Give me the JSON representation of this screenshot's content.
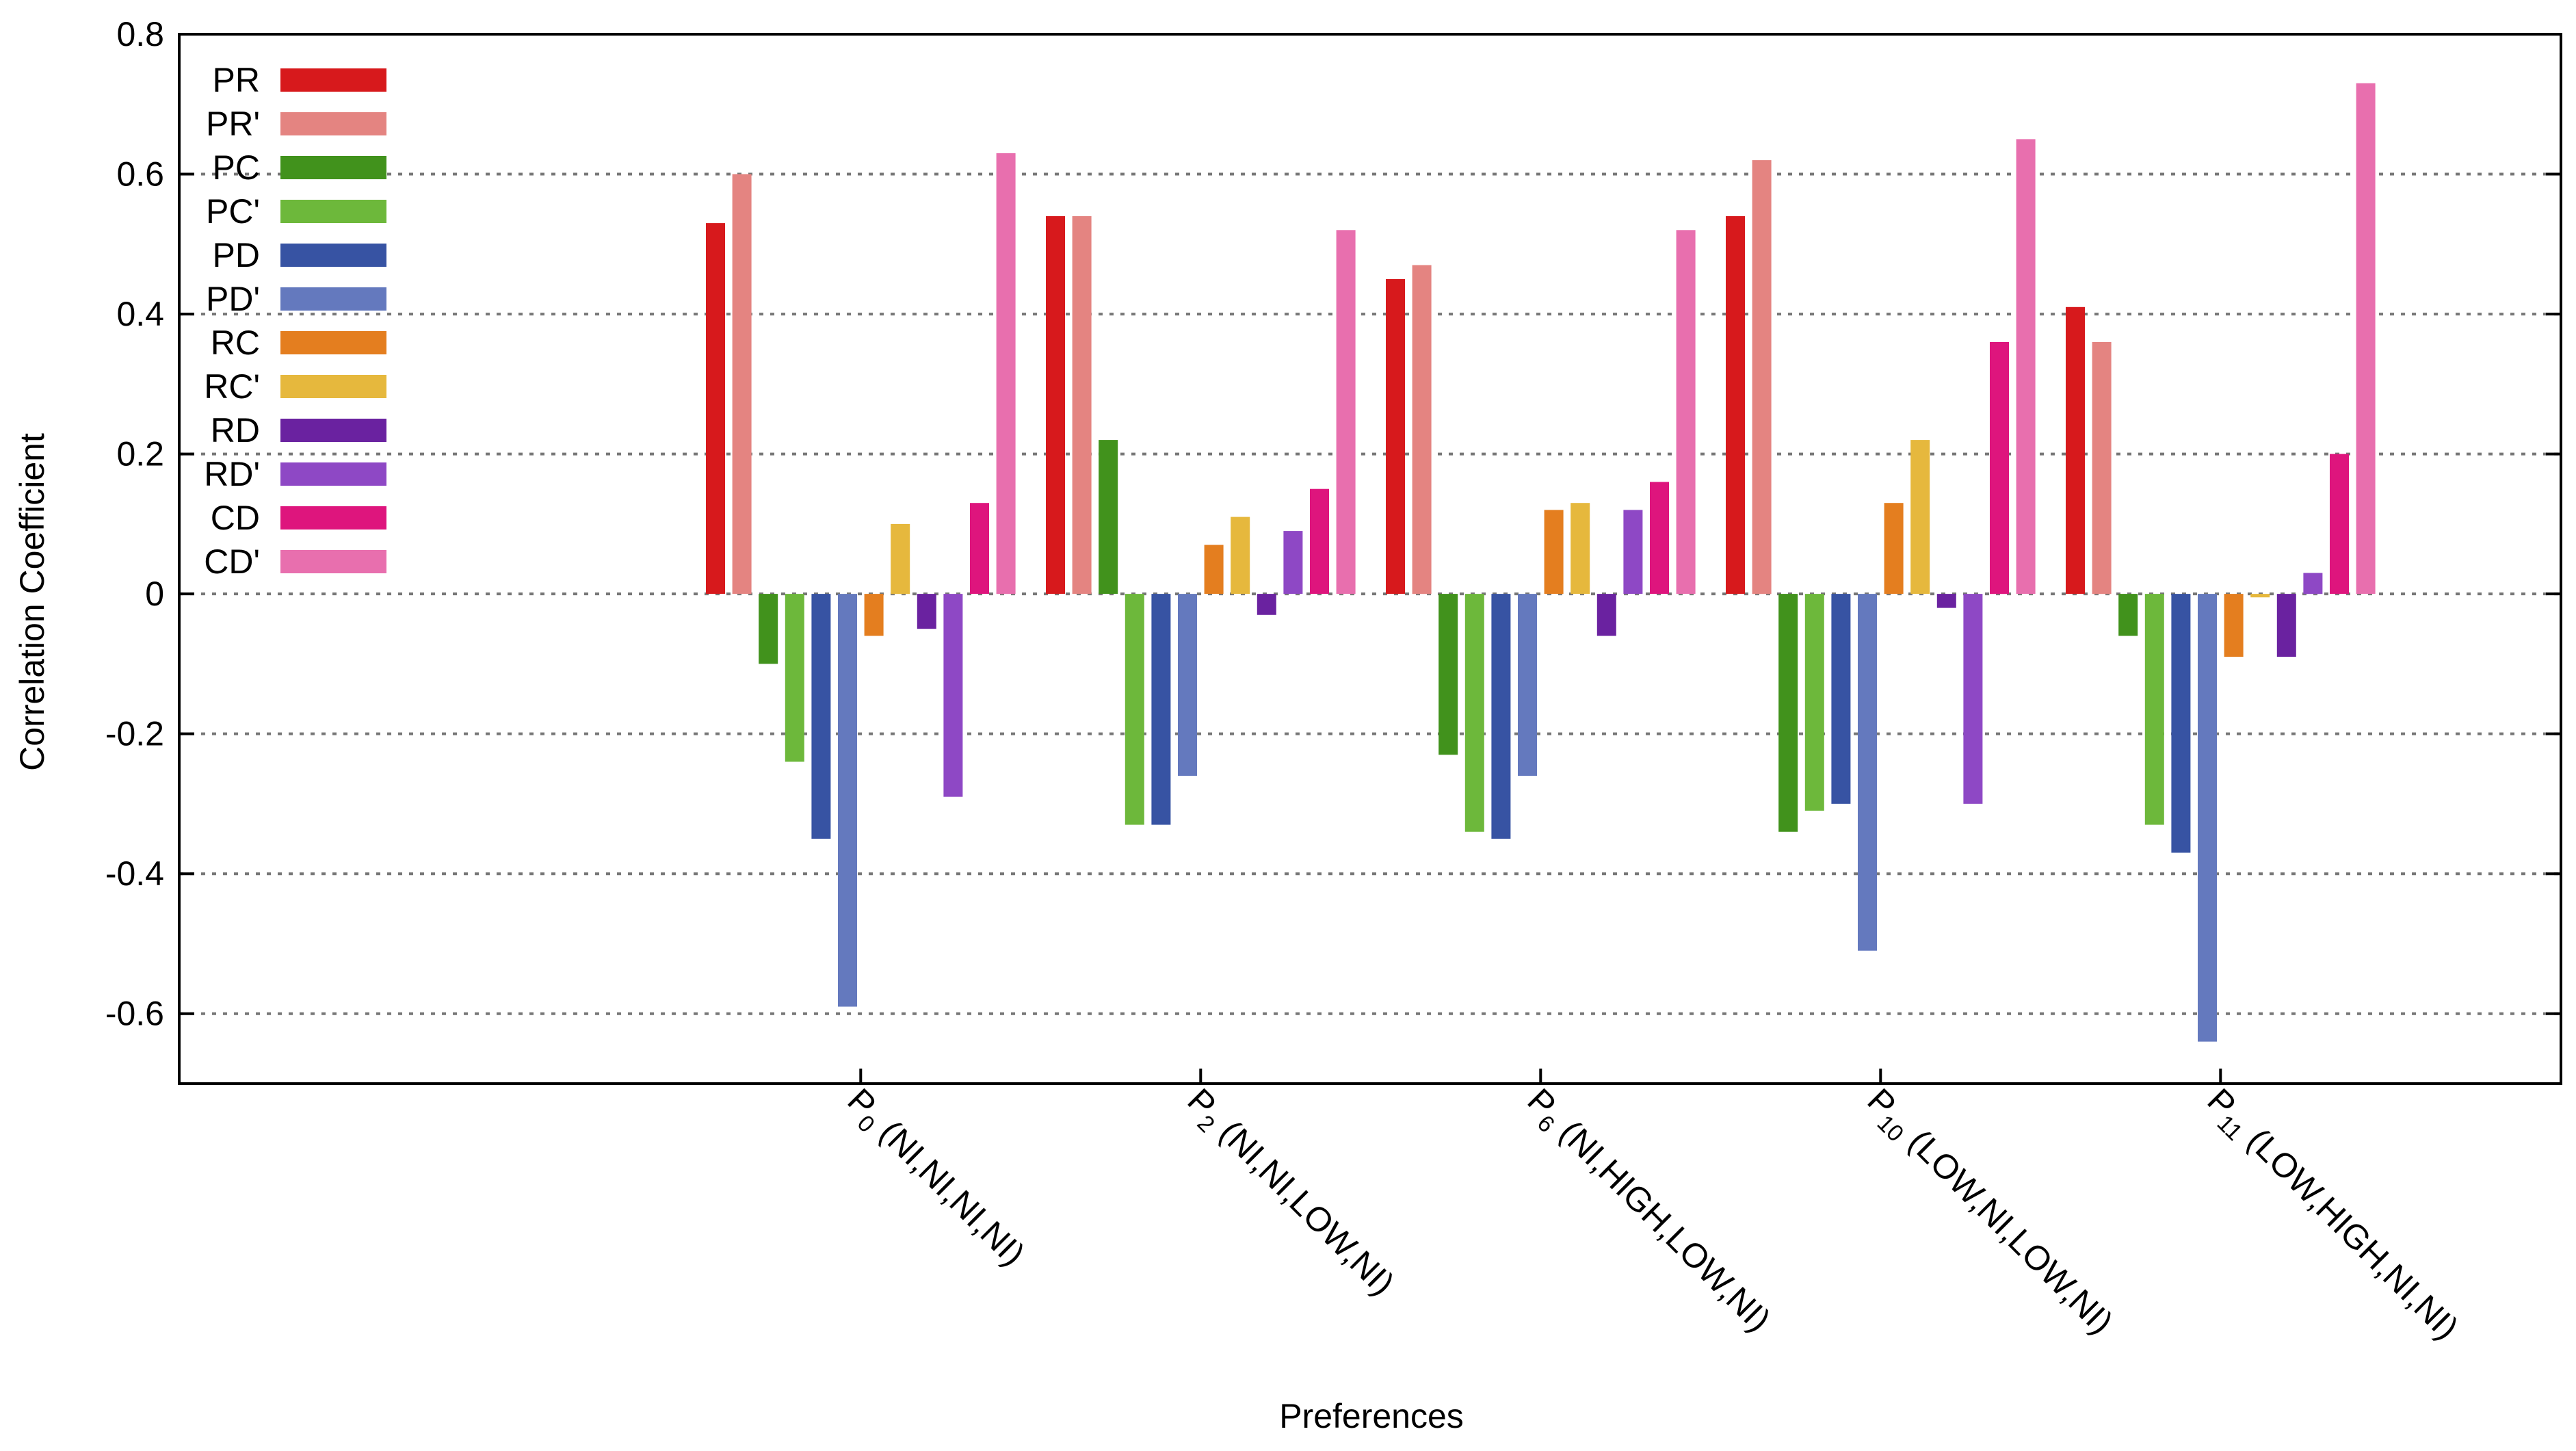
{
  "chart_data": {
    "type": "bar",
    "xlabel": "Preferences",
    "ylabel": "Correlation Coefficient",
    "ylim": [
      -0.7,
      0.8
    ],
    "yticks": [
      -0.6,
      -0.4,
      -0.2,
      0,
      0.2,
      0.4,
      0.6,
      0.8
    ],
    "ytick_labels": [
      "-0.6",
      "-0.4",
      "-0.2",
      "0",
      "0.2",
      "0.4",
      "0.6",
      "0.8"
    ],
    "grid": "horizontal dotted",
    "legend_position": "top-left",
    "categories": [
      {
        "sym": "P",
        "sub": "0",
        "rest": " (NI,NI,NI,NI)"
      },
      {
        "sym": "P",
        "sub": "2",
        "rest": " (NI,NI,LOW,NI)"
      },
      {
        "sym": "P",
        "sub": "6",
        "rest": " (NI,HIGH,LOW,NI)"
      },
      {
        "sym": "P",
        "sub": "10",
        "rest": " (LOW,NI,LOW,NI)"
      },
      {
        "sym": "P",
        "sub": "11",
        "rest": " (LOW,HIGH,NI,NI)"
      }
    ],
    "series": [
      {
        "name": "PR",
        "color": "#d7191c",
        "values": [
          0.53,
          0.54,
          0.45,
          0.54,
          0.41
        ]
      },
      {
        "name": "PR'",
        "color": "#e48481",
        "values": [
          0.6,
          0.54,
          0.47,
          0.62,
          0.36
        ]
      },
      {
        "name": "PC",
        "color": "#41921c",
        "values": [
          -0.1,
          0.22,
          -0.23,
          -0.34,
          -0.06
        ]
      },
      {
        "name": "PC'",
        "color": "#6db83b",
        "values": [
          -0.24,
          -0.33,
          -0.34,
          -0.31,
          -0.33
        ]
      },
      {
        "name": "PD",
        "color": "#3753a3",
        "values": [
          -0.35,
          -0.33,
          -0.35,
          -0.3,
          -0.37
        ]
      },
      {
        "name": "PD'",
        "color": "#6479be",
        "values": [
          -0.59,
          -0.26,
          -0.26,
          -0.51,
          -0.64
        ]
      },
      {
        "name": "RC",
        "color": "#e47e1f",
        "values": [
          -0.06,
          0.07,
          0.12,
          0.13,
          -0.09
        ]
      },
      {
        "name": "RC'",
        "color": "#e6b83d",
        "values": [
          0.1,
          0.11,
          0.13,
          0.22,
          -0.005
        ]
      },
      {
        "name": "RD",
        "color": "#6a22a0",
        "values": [
          -0.05,
          -0.03,
          -0.06,
          -0.02,
          -0.09
        ]
      },
      {
        "name": "RD'",
        "color": "#8e48c5",
        "values": [
          -0.29,
          0.09,
          0.12,
          -0.3,
          0.03
        ]
      },
      {
        "name": "CD",
        "color": "#de157d",
        "values": [
          0.13,
          0.15,
          0.16,
          0.36,
          0.2
        ]
      },
      {
        "name": "CD'",
        "color": "#e86fae",
        "values": [
          0.63,
          0.52,
          0.52,
          0.65,
          0.73
        ]
      }
    ]
  }
}
